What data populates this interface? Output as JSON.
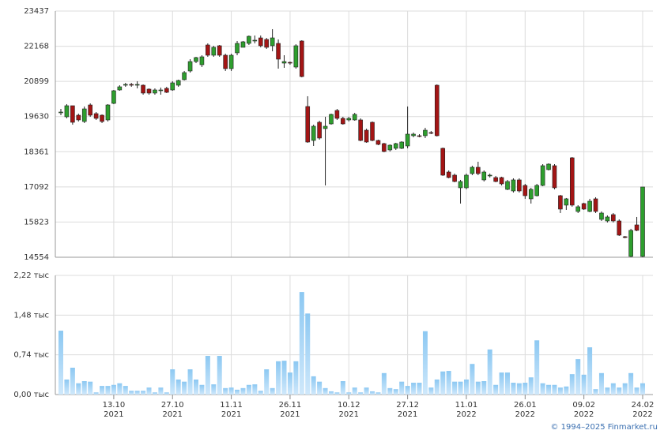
{
  "chart_data": [
    {
      "type": "candlestick",
      "categories": [
        null,
        null,
        null,
        null,
        null,
        null,
        null,
        null,
        null,
        "13.10",
        null,
        null,
        null,
        null,
        null,
        null,
        null,
        null,
        null,
        "27.10",
        null,
        null,
        null,
        null,
        null,
        null,
        null,
        null,
        null,
        "11.11",
        null,
        null,
        null,
        null,
        null,
        null,
        null,
        null,
        null,
        "26.11",
        null,
        null,
        null,
        null,
        null,
        null,
        null,
        null,
        null,
        "10.12",
        null,
        null,
        null,
        null,
        null,
        null,
        null,
        null,
        null,
        "27.12",
        null,
        null,
        null,
        null,
        null,
        null,
        null,
        null,
        null,
        "11.01",
        null,
        null,
        null,
        null,
        null,
        null,
        null,
        null,
        null,
        "26.01",
        null,
        null,
        null,
        null,
        null,
        null,
        null,
        null,
        null,
        "09.02",
        null,
        null,
        null,
        null,
        null,
        null,
        null,
        null,
        null,
        "24.02"
      ],
      "category_years": [
        null,
        null,
        null,
        null,
        null,
        null,
        null,
        null,
        null,
        "2021",
        null,
        null,
        null,
        null,
        null,
        null,
        null,
        null,
        null,
        "2021",
        null,
        null,
        null,
        null,
        null,
        null,
        null,
        null,
        null,
        "2021",
        null,
        null,
        null,
        null,
        null,
        null,
        null,
        null,
        null,
        "2021",
        null,
        null,
        null,
        null,
        null,
        null,
        null,
        null,
        null,
        "2021",
        null,
        null,
        null,
        null,
        null,
        null,
        null,
        null,
        null,
        "2021",
        null,
        null,
        null,
        null,
        null,
        null,
        null,
        null,
        null,
        "2022",
        null,
        null,
        null,
        null,
        null,
        null,
        null,
        null,
        null,
        "2022",
        null,
        null,
        null,
        null,
        null,
        null,
        null,
        null,
        null,
        "2022",
        null,
        null,
        null,
        null,
        null,
        null,
        null,
        null,
        null,
        "2022"
      ],
      "open": [
        19765,
        19622,
        20021,
        19679,
        19452,
        20049,
        19736,
        19679,
        19509,
        20106,
        20590,
        20761,
        20790,
        20761,
        20761,
        20619,
        20477,
        20562,
        20647,
        20590,
        20761,
        20961,
        21274,
        21615,
        21501,
        22213,
        21843,
        22185,
        21843,
        21359,
        21929,
        22128,
        22270,
        22356,
        22469,
        22412,
        22185,
        22270,
        21558,
        21586,
        21416,
        22356,
        19993,
        18768,
        19423,
        19195,
        19366,
        19850,
        19565,
        19509,
        19509,
        19509,
        19138,
        19423,
        18768,
        18654,
        18427,
        18484,
        18484,
        18569,
        18939,
        18939,
        18939,
        19053,
        20761,
        18484,
        17629,
        17516,
        17060,
        17060,
        17573,
        17800,
        17345,
        17488,
        17430,
        17430,
        17003,
        16946,
        17345,
        17145,
        16662,
        16775,
        17145,
        17715,
        17857,
        16775,
        16434,
        18142,
        16206,
        16491,
        16206,
        16662,
        15921,
        15864,
        16092,
        15864,
        15295,
        14583,
        15722,
        14583
      ],
      "high": [
        19907,
        20078,
        20021,
        19736,
        19993,
        20106,
        19793,
        19708,
        20078,
        20590,
        20761,
        20847,
        20847,
        20904,
        20790,
        20647,
        20647,
        20676,
        20704,
        20904,
        20961,
        21274,
        21700,
        21786,
        21843,
        22270,
        22185,
        22213,
        21900,
        21900,
        22356,
        22356,
        22555,
        22555,
        22555,
        22469,
        22783,
        22412,
        21843,
        21615,
        22240,
        22384,
        20363,
        19338,
        19480,
        19622,
        19736,
        19907,
        19622,
        19622,
        19765,
        19565,
        19195,
        19452,
        18796,
        18683,
        18626,
        18683,
        18740,
        19993,
        19053,
        18996,
        19224,
        19110,
        20790,
        18512,
        17686,
        17573,
        17345,
        17573,
        17857,
        18000,
        17686,
        17573,
        17488,
        17459,
        17345,
        17402,
        17402,
        17202,
        17060,
        17202,
        17914,
        17942,
        17914,
        16804,
        16691,
        18170,
        16434,
        16520,
        16662,
        16719,
        16206,
        16064,
        16149,
        15921,
        15323,
        15580,
        16007,
        17089
      ],
      "low": [
        19679,
        19565,
        19338,
        19452,
        19395,
        19622,
        19509,
        19395,
        19452,
        20078,
        20562,
        20704,
        20704,
        20647,
        20420,
        20420,
        20420,
        20420,
        20477,
        20562,
        20704,
        20932,
        21217,
        21558,
        21416,
        21786,
        21786,
        21786,
        21274,
        21274,
        21843,
        22128,
        22213,
        22270,
        22128,
        22070,
        21985,
        21359,
        21388,
        21501,
        21359,
        21046,
        18683,
        18569,
        18796,
        17145,
        19338,
        19509,
        19338,
        19452,
        19480,
        18740,
        18683,
        18740,
        18597,
        18342,
        18370,
        18427,
        18456,
        18484,
        18882,
        18882,
        18854,
        18996,
        18911,
        17488,
        17402,
        17259,
        16491,
        17003,
        17516,
        17516,
        17287,
        17430,
        17259,
        17145,
        16975,
        16889,
        16889,
        16662,
        16491,
        16747,
        17117,
        17686,
        17003,
        16149,
        16263,
        16377,
        16149,
        16263,
        16178,
        16149,
        15864,
        15807,
        15807,
        15323,
        15238,
        14554,
        15495,
        14554
      ],
      "close": [
        19793,
        20021,
        19423,
        19509,
        19907,
        19679,
        19565,
        19452,
        20049,
        20562,
        20704,
        20790,
        20761,
        20790,
        20477,
        20477,
        20590,
        20590,
        20505,
        20847,
        20932,
        21217,
        21615,
        21758,
        21786,
        21843,
        22128,
        21843,
        21359,
        21843,
        22270,
        22327,
        22526,
        22384,
        22185,
        22128,
        22469,
        21701,
        21615,
        21558,
        22185,
        21074,
        18711,
        19281,
        18854,
        19281,
        19708,
        19565,
        19366,
        19565,
        19708,
        18768,
        18711,
        18768,
        18626,
        18370,
        18597,
        18654,
        18711,
        18996,
        18996,
        18911,
        19138,
        19025,
        18939,
        17516,
        17430,
        17287,
        17287,
        17516,
        17800,
        17573,
        17629,
        17516,
        17287,
        17202,
        17287,
        17345,
        16946,
        16775,
        17003,
        17145,
        17857,
        17914,
        17060,
        16291,
        16662,
        16434,
        16377,
        16291,
        16576,
        16206,
        16149,
        16007,
        15864,
        15352,
        15267,
        15523,
        15523,
        17089
      ],
      "up_color": "#2e9e2e",
      "down_color": "#a31515",
      "ylim": [
        14554,
        23437
      ],
      "yticks": [
        14554,
        15823,
        17092,
        18361,
        19630,
        20899,
        22168,
        23437
      ],
      "grid": true
    },
    {
      "type": "bar",
      "values": [
        1.19,
        0.28,
        0.5,
        0.21,
        0.25,
        0.24,
        0.04,
        0.16,
        0.16,
        0.18,
        0.21,
        0.16,
        0.07,
        0.07,
        0.07,
        0.13,
        0.04,
        0.13,
        0.04,
        0.47,
        0.28,
        0.24,
        0.47,
        0.28,
        0.18,
        0.72,
        0.19,
        0.72,
        0.12,
        0.13,
        0.09,
        0.12,
        0.18,
        0.19,
        0.07,
        0.47,
        0.12,
        0.62,
        0.63,
        0.41,
        0.62,
        1.91,
        1.51,
        0.34,
        0.24,
        0.12,
        0.06,
        0.04,
        0.25,
        0.04,
        0.13,
        0.04,
        0.13,
        0.06,
        0.04,
        0.4,
        0.12,
        0.1,
        0.24,
        0.16,
        0.22,
        0.22,
        1.18,
        0.13,
        0.28,
        0.43,
        0.44,
        0.24,
        0.24,
        0.28,
        0.57,
        0.24,
        0.25,
        0.84,
        0.18,
        0.41,
        0.41,
        0.22,
        0.21,
        0.22,
        0.32,
        1.01,
        0.21,
        0.18,
        0.18,
        0.13,
        0.15,
        0.38,
        0.66,
        0.37,
        0.88,
        0.1,
        0.4,
        0.13,
        0.21,
        0.13,
        0.21,
        0.4,
        0.13,
        0.21
      ],
      "color": "#8cc8f2",
      "ylim": [
        0,
        2.22
      ],
      "yticks": [
        {
          "value": 0,
          "label": "0,00 тыс"
        },
        {
          "value": 0.74,
          "label": "0,74 тыс"
        },
        {
          "value": 1.48,
          "label": "1,48 тыс"
        },
        {
          "value": 2.22,
          "label": "2,22 тыс"
        }
      ],
      "grid": true
    }
  ],
  "footer": "© 1994–2025 Finmarket.ru"
}
